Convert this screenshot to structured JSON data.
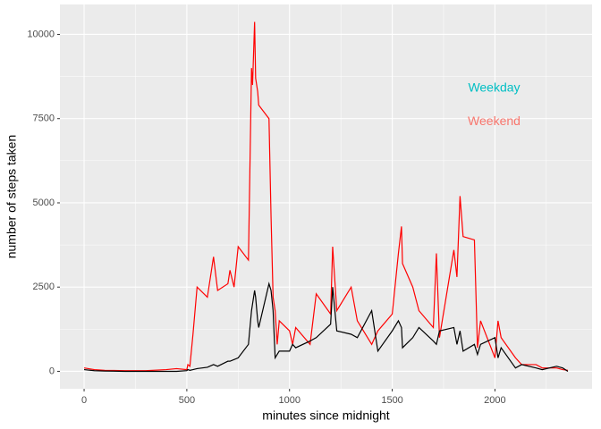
{
  "chart_data": {
    "type": "line",
    "x_label": "minutes since midnight",
    "y_label": "number of steps taken",
    "x": [
      0,
      50,
      100,
      200,
      300,
      400,
      450,
      500,
      505,
      515,
      530,
      550,
      600,
      630,
      650,
      700,
      710,
      730,
      750,
      800,
      815,
      820,
      830,
      835,
      845,
      850,
      900,
      910,
      920,
      930,
      940,
      950,
      1000,
      1015,
      1030,
      1100,
      1130,
      1200,
      1210,
      1230,
      1300,
      1330,
      1400,
      1430,
      1500,
      1530,
      1545,
      1550,
      1600,
      1630,
      1700,
      1715,
      1730,
      1800,
      1815,
      1830,
      1845,
      1900,
      1915,
      1930,
      2000,
      2015,
      2030,
      2100,
      2130,
      2200,
      2230,
      2300,
      2330,
      2355
    ],
    "series": [
      {
        "color": "#ff0000",
        "values": [
          100,
          50,
          30,
          20,
          20,
          50,
          80,
          50,
          200,
          150,
          1100,
          2500,
          2200,
          3400,
          2400,
          2600,
          3000,
          2500,
          3700,
          3300,
          9000,
          8500,
          10370,
          8700,
          8300,
          7900,
          7500,
          4600,
          2200,
          1800,
          800,
          1500,
          1200,
          800,
          1300,
          800,
          2300,
          1700,
          3700,
          1800,
          2500,
          1500,
          800,
          1200,
          1700,
          3500,
          4300,
          3200,
          2500,
          1800,
          1300,
          3500,
          1000,
          3600,
          2800,
          5200,
          4000,
          3900,
          700,
          1500,
          400,
          1500,
          1000,
          400,
          200,
          200,
          100,
          100,
          50,
          30
        ]
      },
      {
        "color": "#000000",
        "values": [
          50,
          20,
          10,
          0,
          0,
          0,
          0,
          20,
          50,
          30,
          50,
          80,
          120,
          200,
          150,
          300,
          300,
          350,
          400,
          800,
          1800,
          2000,
          2400,
          2200,
          1500,
          1300,
          2600,
          2400,
          1800,
          400,
          500,
          600,
          600,
          800,
          700,
          900,
          1000,
          1400,
          2500,
          1200,
          1100,
          1000,
          1800,
          600,
          1200,
          1500,
          1300,
          700,
          1000,
          1300,
          900,
          800,
          1200,
          1300,
          800,
          1200,
          600,
          800,
          500,
          800,
          1000,
          400,
          700,
          100,
          200,
          100,
          50,
          150,
          100,
          0
        ]
      }
    ],
    "annotations": [
      {
        "text": "Weekday",
        "x": 1996,
        "y": 8400,
        "color": "#00BFC4"
      },
      {
        "text": "Weekend",
        "x": 1996,
        "y": 7400,
        "color": "#F8766D"
      }
    ],
    "xlim": [
      -117.75,
      2472.75
    ],
    "ylim": [
      -518,
      10888
    ],
    "xticks": [
      0,
      500,
      1000,
      1500,
      2000
    ],
    "yticks": [
      0,
      2500,
      5000,
      7500,
      10000
    ],
    "x_minor_grid": [
      250,
      750,
      1250,
      1750,
      2250
    ],
    "y_minor_grid": [
      1250,
      3750,
      6250,
      8750
    ],
    "grid": true,
    "panel_color": "#EBEBEB"
  }
}
